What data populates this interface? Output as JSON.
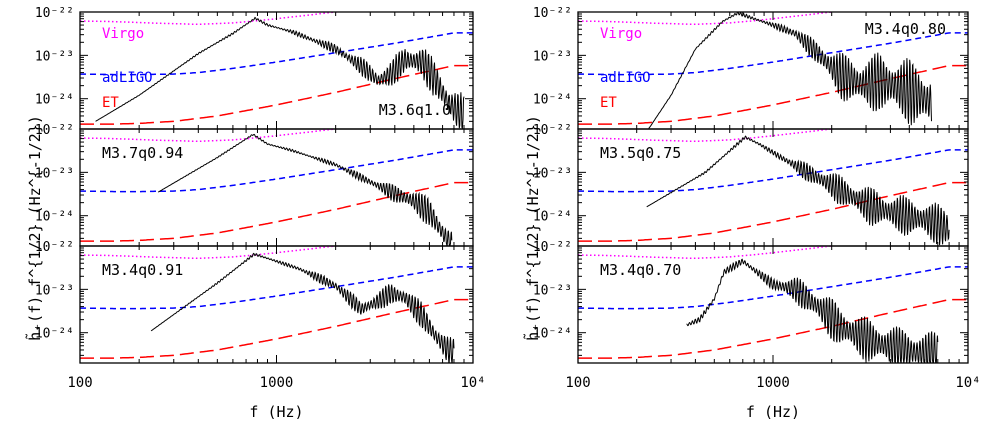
{
  "figure": {
    "ylabel": "h̃₊(f) f^{1/2} (Hz^{-1/2})",
    "xlabel": "f (Hz)",
    "xticks": [
      {
        "value": 100,
        "label": "100"
      },
      {
        "value": 1000,
        "label": "1000"
      },
      {
        "value": 10000,
        "label": "10⁴"
      }
    ],
    "yticks": [
      {
        "exp": -22,
        "label": "10⁻²²"
      },
      {
        "exp": -23,
        "label": "10⁻²³"
      },
      {
        "exp": -24,
        "label": "10⁻²⁴"
      }
    ],
    "colors": {
      "virgo": "#ff00ff",
      "adligo": "#0000ff",
      "et": "#ff0000",
      "signal": "#000000"
    }
  },
  "chart_data": {
    "type": "line",
    "x_scale": "log",
    "y_scale": "log",
    "xlim": [
      100,
      10000
    ],
    "ylim": [
      2e-25,
      1e-22
    ],
    "grid": false,
    "detectors": [
      {
        "name": "Virgo",
        "style": "dotted",
        "color": "#ff00ff",
        "x": [
          100,
          150,
          250,
          400,
          600,
          800,
          1000,
          2000,
          4000,
          8000
        ],
        "y": [
          6.2e-23,
          6e-23,
          5.5e-23,
          5.2e-23,
          5.6e-23,
          6.3e-23,
          7e-23,
          1e-22,
          1.5e-22,
          2.2e-22
        ]
      },
      {
        "name": "adLIGO",
        "style": "short-dash",
        "color": "#0000ff",
        "x": [
          100,
          150,
          200,
          300,
          400,
          600,
          1000,
          2000,
          4000,
          8000
        ],
        "y": [
          3.7e-24,
          3.6e-24,
          3.6e-24,
          3.7e-24,
          4e-24,
          5e-24,
          7e-24,
          1.15e-23,
          1.9e-23,
          3.3e-23
        ]
      },
      {
        "name": "ET",
        "style": "long-dash",
        "color": "#ff0000",
        "x": [
          100,
          150,
          200,
          300,
          500,
          700,
          1000,
          2000,
          4000,
          8000
        ],
        "y": [
          2.6e-25,
          2.6e-25,
          2.7e-25,
          3e-25,
          4e-25,
          5.3e-25,
          7.2e-25,
          1.4e-24,
          2.9e-24,
          5.8e-24
        ]
      }
    ],
    "panels": [
      {
        "label": "M3.6q1.0",
        "label_pos": "bottom-right",
        "legend": true,
        "col": 0,
        "row": 0,
        "f_lo": 120,
        "f_hi": 9000,
        "env": [
          [
            120,
            3e-25
          ],
          [
            200,
            1.2e-24
          ],
          [
            400,
            1.1e-23
          ],
          [
            600,
            3.2e-23
          ],
          [
            780,
            7.2e-23
          ],
          [
            900,
            5e-23
          ],
          [
            1200,
            3.5e-23
          ],
          [
            2000,
            1.4e-23
          ],
          [
            2800,
            5e-24
          ],
          [
            3300,
            2.6e-24
          ],
          [
            3800,
            3.6e-24
          ],
          [
            4500,
            8e-24
          ],
          [
            5500,
            7e-24
          ],
          [
            6500,
            2.5e-24
          ],
          [
            7500,
            8e-25
          ],
          [
            9000,
            4e-25
          ]
        ],
        "osc": [
          [
            120,
            0
          ],
          [
            1100,
            0.03
          ],
          [
            2000,
            0.12
          ],
          [
            3000,
            0.25
          ],
          [
            6000,
            0.45
          ],
          [
            9000,
            0.5
          ]
        ]
      },
      {
        "label": "M3.7q0.94",
        "label_pos": "top-left",
        "legend": false,
        "col": 0,
        "row": 1,
        "f_lo": 250,
        "f_hi": 7800,
        "env": [
          [
            250,
            3.5e-24
          ],
          [
            500,
            2.2e-23
          ],
          [
            760,
            7.5e-23
          ],
          [
            900,
            4.5e-23
          ],
          [
            1200,
            3.2e-23
          ],
          [
            2000,
            1.5e-23
          ],
          [
            3000,
            6e-24
          ],
          [
            4000,
            3.2e-24
          ],
          [
            5000,
            2.2e-24
          ],
          [
            6000,
            1.2e-24
          ],
          [
            7000,
            4e-25
          ],
          [
            7800,
            2e-25
          ]
        ],
        "osc": [
          [
            250,
            0
          ],
          [
            1500,
            0.03
          ],
          [
            3000,
            0.1
          ],
          [
            5000,
            0.3
          ],
          [
            7800,
            0.4
          ]
        ]
      },
      {
        "label": "M3.4q0.91",
        "label_pos": "top-left",
        "legend": false,
        "col": 0,
        "row": 2,
        "f_lo": 230,
        "f_hi": 8000,
        "env": [
          [
            230,
            1.1e-24
          ],
          [
            500,
            1.4e-23
          ],
          [
            770,
            6.5e-23
          ],
          [
            900,
            5.2e-23
          ],
          [
            1300,
            3e-23
          ],
          [
            2000,
            1.2e-23
          ],
          [
            2700,
            3.5e-24
          ],
          [
            3200,
            5e-24
          ],
          [
            3800,
            8e-24
          ],
          [
            4500,
            6.5e-24
          ],
          [
            5500,
            2.5e-24
          ],
          [
            6500,
            8e-25
          ],
          [
            7500,
            3.8e-25
          ],
          [
            8000,
            3.3e-25
          ]
        ],
        "osc": [
          [
            230,
            0
          ],
          [
            1200,
            0.04
          ],
          [
            2000,
            0.15
          ],
          [
            3000,
            0.22
          ],
          [
            5000,
            0.3
          ],
          [
            8000,
            0.35
          ]
        ]
      },
      {
        "label": "M3.4q0.80",
        "label_pos": "top-right",
        "legend": true,
        "col": 1,
        "row": 0,
        "f_lo": 230,
        "f_hi": 6500,
        "env": [
          [
            230,
            2e-25
          ],
          [
            300,
            1.2e-24
          ],
          [
            400,
            1.4e-23
          ],
          [
            550,
            6e-23
          ],
          [
            660,
            9.5e-23
          ],
          [
            800,
            7e-23
          ],
          [
            1000,
            5e-23
          ],
          [
            1300,
            3.2e-23
          ],
          [
            1700,
            1.1e-23
          ],
          [
            2200,
            3.5e-24
          ],
          [
            2800,
            2.2e-24
          ],
          [
            3500,
            2.4e-24
          ],
          [
            4500,
            1.8e-24
          ],
          [
            5500,
            1.2e-24
          ],
          [
            6500,
            8e-25
          ]
        ],
        "osc": [
          [
            230,
            0
          ],
          [
            1000,
            0.05
          ],
          [
            1600,
            0.25
          ],
          [
            2200,
            0.55
          ],
          [
            4000,
            0.75
          ],
          [
            6500,
            0.8
          ]
        ]
      },
      {
        "label": "M3.5q0.75",
        "label_pos": "top-left",
        "legend": false,
        "col": 1,
        "row": 1,
        "f_lo": 225,
        "f_hi": 8000,
        "env": [
          [
            225,
            1.6e-24
          ],
          [
            450,
            1e-23
          ],
          [
            720,
            6.5e-23
          ],
          [
            850,
            4.5e-23
          ],
          [
            1100,
            2.2e-23
          ],
          [
            1500,
            1e-23
          ],
          [
            2000,
            5e-24
          ],
          [
            3000,
            1.8e-24
          ],
          [
            4000,
            1.2e-24
          ],
          [
            6000,
            8e-25
          ],
          [
            8000,
            5e-25
          ]
        ],
        "osc": [
          [
            225,
            0
          ],
          [
            1000,
            0.05
          ],
          [
            1800,
            0.3
          ],
          [
            3000,
            0.45
          ],
          [
            8000,
            0.5
          ]
        ]
      },
      {
        "label": "M3.4q0.70",
        "label_pos": "top-left",
        "legend": false,
        "col": 1,
        "row": 2,
        "f_lo": 360,
        "f_hi": 7000,
        "env": [
          [
            360,
            1.5e-24
          ],
          [
            420,
            2e-24
          ],
          [
            500,
            6e-24
          ],
          [
            560,
            2.5e-23
          ],
          [
            700,
            4.5e-23
          ],
          [
            800,
            2.8e-23
          ],
          [
            1000,
            1.3e-23
          ],
          [
            1300,
            1e-23
          ],
          [
            1700,
            4e-24
          ],
          [
            2200,
            1.4e-24
          ],
          [
            3000,
            7e-25
          ],
          [
            4500,
            4e-25
          ],
          [
            7000,
            3e-25
          ]
        ],
        "osc": [
          [
            360,
            0.05
          ],
          [
            900,
            0.1
          ],
          [
            1300,
            0.3
          ],
          [
            2000,
            0.5
          ],
          [
            7000,
            0.55
          ]
        ]
      }
    ]
  }
}
